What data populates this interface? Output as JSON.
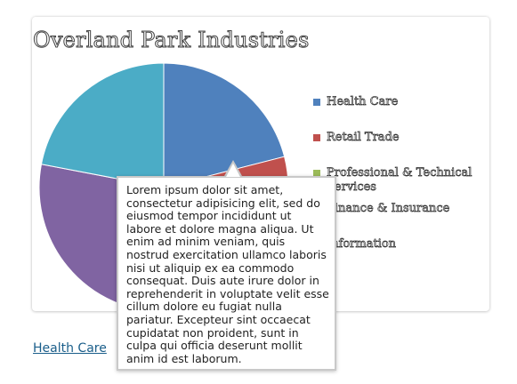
{
  "chart_data": {
    "type": "pie",
    "title": "Overland Park Industries",
    "categories": [
      "Health Care",
      "Retail Trade",
      "Professional & Technical Services",
      "Finance & Insurance",
      "Information"
    ],
    "values": [
      21,
      12,
      17,
      28,
      22
    ],
    "colors": [
      "#4f81bd",
      "#c0504d",
      "#9bbb59",
      "#8064a2",
      "#4bacc6"
    ],
    "legend_position": "right"
  },
  "tooltip": {
    "text": "Lorem ipsum dolor sit amet, consectetur adipisicing elit, sed do eiusmod tempor incididunt ut labore et dolore magna aliqua. Ut enim ad minim veniam, quis nostrud exercitation ullamco laboris nisi ut aliquip ex ea commodo consequat. Duis aute irure dolor in reprehenderit in voluptate velit esse cillum dolore eu fugiat nulla pariatur. Excepteur sint occaecat cupidatat non proident, sunt in culpa qui officia deserunt mollit anim id est laborum."
  },
  "selected_link": {
    "label": "Health Care"
  }
}
